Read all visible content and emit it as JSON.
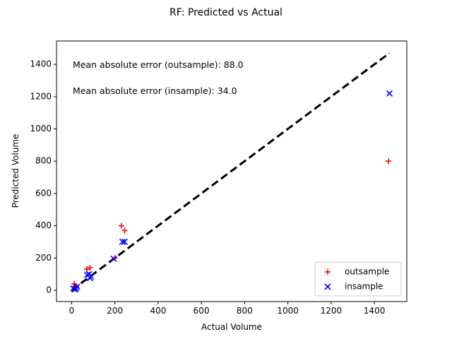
{
  "chart_data": {
    "type": "scatter",
    "title": "RF: Predicted vs Actual",
    "xlabel": "Actual Volume",
    "ylabel": "Predicted Volume",
    "xlim": [
      -70,
      1550
    ],
    "ylim": [
      -70,
      1545
    ],
    "xticks": [
      0,
      200,
      400,
      600,
      800,
      1000,
      1200,
      1400
    ],
    "yticks": [
      0,
      200,
      400,
      600,
      800,
      1000,
      1200,
      1400
    ],
    "grid": false,
    "legend_position": "lower-right",
    "annotations": [
      {
        "text": "Mean absolute error (outsample): 88.0",
        "x": 5,
        "y": 1395
      },
      {
        "text": "Mean absolute error (insample): 34.0",
        "x": 5,
        "y": 1233
      }
    ],
    "reference_line": {
      "style": "dashed",
      "color": "#000000",
      "from": [
        0,
        0
      ],
      "to": [
        1470,
        1470
      ]
    },
    "series": [
      {
        "name": "outsample",
        "marker": "plus",
        "color": "#ff0000",
        "points": [
          [
            12,
            40
          ],
          [
            18,
            28
          ],
          [
            22,
            18
          ],
          [
            70,
            130
          ],
          [
            85,
            140
          ],
          [
            200,
            200
          ],
          [
            230,
            400
          ],
          [
            245,
            370
          ],
          [
            1465,
            800
          ]
        ]
      },
      {
        "name": "insample",
        "marker": "x",
        "color": "#0000ff",
        "points": [
          [
            8,
            10
          ],
          [
            15,
            5
          ],
          [
            20,
            12
          ],
          [
            25,
            22
          ],
          [
            72,
            95
          ],
          [
            80,
            100
          ],
          [
            85,
            75
          ],
          [
            90,
            85
          ],
          [
            195,
            195
          ],
          [
            235,
            300
          ],
          [
            245,
            300
          ],
          [
            1470,
            1220
          ]
        ]
      }
    ]
  }
}
